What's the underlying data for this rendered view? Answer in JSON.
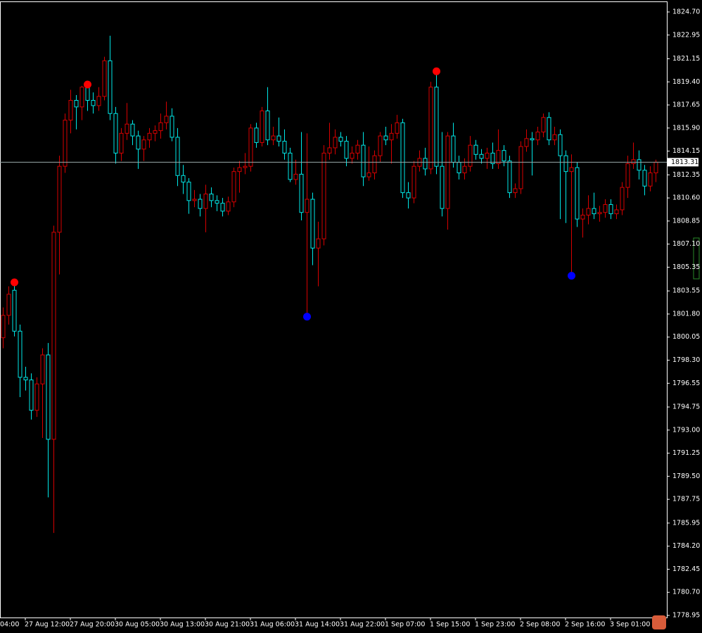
{
  "chart_data": {
    "type": "candlestick",
    "bull_color": "#d80000",
    "bear_color": "#00e8e8",
    "fractal_up_color": "#ff0000",
    "fractal_down_color": "#0000ff",
    "ylim": [
      1778.79,
      1825.5
    ],
    "yticks": [
      {
        "value": 1824.7,
        "label": "1824.70"
      },
      1822.95,
      1821.15,
      {
        "value": 1819.4,
        "label": "1819.40"
      },
      1817.65,
      {
        "value": 1815.9,
        "label": "1815.90"
      },
      1814.15,
      1812.35,
      {
        "value": 1810.6,
        "label": "1810.60"
      },
      1808.85,
      {
        "value": 1807.1,
        "label": "1807.10"
      },
      1805.35,
      1803.55,
      {
        "value": 1801.8,
        "label": "1801.80"
      },
      1800.05,
      {
        "value": 1798.3,
        "label": "1798.30"
      },
      1796.55,
      1794.75,
      {
        "value": 1793.0,
        "label": "1793.00"
      },
      1791.25,
      {
        "value": 1789.5,
        "label": "1789.50"
      },
      1787.75,
      1785.95,
      {
        "value": 1784.2,
        "label": "1784.20"
      },
      1782.45,
      {
        "value": 1780.7,
        "label": "1780.70"
      },
      1778.95
    ],
    "current_price": 1813.31,
    "first_label_cut": "04:00",
    "categories": [
      null,
      null,
      null,
      null,
      "27 Aug 12:00",
      null,
      null,
      null,
      null,
      null,
      null,
      null,
      "27 Aug 20:00",
      null,
      null,
      null,
      null,
      null,
      null,
      null,
      "30 Aug 05:00",
      null,
      null,
      null,
      null,
      null,
      null,
      null,
      "30 Aug 13:00",
      null,
      null,
      null,
      null,
      null,
      null,
      null,
      "30 Aug 21:00",
      null,
      null,
      null,
      null,
      null,
      null,
      null,
      "31 Aug 06:00",
      null,
      null,
      null,
      null,
      null,
      null,
      null,
      "31 Aug 14:00",
      null,
      null,
      null,
      null,
      null,
      null,
      null,
      "31 Aug 22:00",
      null,
      null,
      null,
      null,
      null,
      null,
      null,
      "1 Sep 07:00",
      null,
      null,
      null,
      null,
      null,
      null,
      null,
      "1 Sep 15:00",
      null,
      null,
      null,
      null,
      null,
      null,
      null,
      "1 Sep 23:00",
      null,
      null,
      null,
      null,
      null,
      null,
      null,
      "2 Sep 08:00",
      null,
      null,
      null,
      null,
      null,
      null,
      null,
      "2 Sep 16:00",
      null,
      null,
      null,
      null,
      null,
      null,
      null,
      "3 Sep 01:00",
      null,
      null,
      null,
      null,
      null,
      null,
      null,
      null
    ],
    "open": [
      1800.0,
      1801.7,
      1803.6,
      1800.5,
      1797.0,
      1796.8,
      1794.5,
      1796.5,
      1798.7,
      1792.3,
      1808.0,
      1813.0,
      1816.5,
      1818.0,
      1817.5,
      1819.0,
      1818.0,
      1817.6,
      1818.3,
      1821.0,
      1817.0,
      1814.0,
      1815.5,
      1816.2,
      1815.3,
      1814.3,
      1815.0,
      1815.5,
      1815.7,
      1816.3,
      1816.8,
      1815.2,
      1812.3,
      1811.8,
      1810.4,
      1810.5,
      1809.8,
      1810.9,
      1810.4,
      1810.2,
      1809.6,
      1810.3,
      1812.6,
      1812.9,
      1813.0,
      1815.9,
      1814.8,
      1817.2,
      1815.0,
      1815.3,
      1814.9,
      1814.0,
      1812.0,
      1812.4,
      1809.5,
      1810.5,
      1806.8,
      1807.5,
      1814.0,
      1814.4,
      1815.2,
      1814.9,
      1813.6,
      1814.0,
      1814.6,
      1812.2,
      1812.5,
      1813.8,
      1815.3,
      1815.0,
      1815.5,
      1816.3,
      1811.0,
      1810.6,
      1813.0,
      1813.6,
      1812.8,
      1819.0,
      1813.0,
      1809.8,
      1815.3,
      1813.3,
      1812.5,
      1813.0,
      1814.6,
      1813.9,
      1813.6,
      1814.0,
      1813.2,
      1814.2,
      1813.4,
      1811.0,
      1811.3,
      1814.5,
      1815.1,
      1815.0,
      1815.6,
      1816.7,
      1815.0,
      1815.4,
      1813.8,
      1812.6,
      1812.9,
      1809.0,
      1809.3,
      1809.8,
      1809.4,
      1809.5,
      1810.1,
      1809.4,
      1809.7,
      1811.4,
      1813.2,
      1813.5,
      1812.7,
      1811.5,
      1812.5
    ],
    "high": [
      1802.3,
      1803.9,
      1804.2,
      1801.0,
      1797.8,
      1797.3,
      1797.0,
      1799.2,
      1799.6,
      1808.5,
      1813.8,
      1817.0,
      1818.8,
      1818.4,
      1819.1,
      1819.2,
      1818.6,
      1819.0,
      1821.3,
      1822.9,
      1817.5,
      1815.9,
      1817.8,
      1816.5,
      1815.7,
      1815.3,
      1815.9,
      1816.1,
      1817.0,
      1817.9,
      1817.4,
      1815.9,
      1813.1,
      1812.1,
      1811.2,
      1810.9,
      1811.6,
      1811.4,
      1810.8,
      1810.6,
      1810.7,
      1812.9,
      1813.4,
      1814.0,
      1816.2,
      1816.3,
      1817.5,
      1819.0,
      1816.0,
      1816.7,
      1815.8,
      1814.4,
      1813.5,
      1815.6,
      1815.5,
      1811.0,
      1808.8,
      1814.6,
      1816.3,
      1815.8,
      1815.6,
      1815.3,
      1814.5,
      1815.0,
      1815.6,
      1814.5,
      1814.2,
      1815.6,
      1816.0,
      1816.2,
      1816.9,
      1816.6,
      1811.8,
      1813.4,
      1814.2,
      1814.4,
      1819.4,
      1820.2,
      1815.6,
      1815.6,
      1816.3,
      1813.8,
      1813.6,
      1815.3,
      1815.0,
      1814.3,
      1814.4,
      1814.8,
      1815.8,
      1814.6,
      1813.8,
      1811.7,
      1814.9,
      1815.8,
      1815.6,
      1816.0,
      1817.0,
      1817.1,
      1816.0,
      1815.8,
      1814.2,
      1813.9,
      1813.3,
      1809.8,
      1810.8,
      1811.0,
      1810.0,
      1810.5,
      1810.5,
      1810.1,
      1811.8,
      1813.8,
      1814.8,
      1814.2,
      1813.1,
      1813.0,
      1813.5
    ],
    "low": [
      1799.2,
      1801.0,
      1800.1,
      1795.5,
      1796.0,
      1793.8,
      1794.0,
      1792.4,
      1787.9,
      1785.2,
      1804.8,
      1812.5,
      1815.5,
      1815.8,
      1816.5,
      1817.2,
      1817.0,
      1817.2,
      1818.0,
      1816.5,
      1813.2,
      1813.4,
      1815.0,
      1814.6,
      1812.8,
      1813.4,
      1814.4,
      1814.9,
      1815.1,
      1815.8,
      1814.9,
      1811.5,
      1810.9,
      1809.4,
      1809.9,
      1809.2,
      1808.0,
      1809.9,
      1809.6,
      1809.2,
      1809.3,
      1809.9,
      1811.0,
      1812.4,
      1812.6,
      1814.4,
      1814.5,
      1814.6,
      1814.6,
      1814.5,
      1813.5,
      1811.8,
      1811.6,
      1808.9,
      1801.6,
      1805.5,
      1803.9,
      1807.0,
      1813.5,
      1813.9,
      1814.5,
      1813.0,
      1813.2,
      1813.5,
      1811.5,
      1811.9,
      1812.0,
      1813.3,
      1814.6,
      1813.2,
      1815.1,
      1810.6,
      1809.8,
      1810.2,
      1812.6,
      1812.3,
      1812.4,
      1812.4,
      1809.2,
      1808.2,
      1812.9,
      1812.0,
      1812.0,
      1812.6,
      1813.5,
      1813.2,
      1812.8,
      1812.8,
      1812.8,
      1813.0,
      1810.6,
      1810.6,
      1810.9,
      1814.1,
      1812.3,
      1814.6,
      1815.2,
      1814.6,
      1814.6,
      1809.0,
      1808.7,
      1804.7,
      1808.4,
      1807.6,
      1808.6,
      1809.0,
      1808.8,
      1809.1,
      1809.0,
      1809.0,
      1809.3,
      1810.6,
      1812.8,
      1812.0,
      1810.8,
      1811.1,
      1811.8
    ],
    "close": [
      1801.7,
      1803.3,
      1800.5,
      1797.0,
      1796.8,
      1794.5,
      1796.5,
      1798.7,
      1792.3,
      1808.0,
      1813.0,
      1816.5,
      1818.0,
      1817.5,
      1819.0,
      1818.0,
      1817.6,
      1818.3,
      1821.0,
      1817.0,
      1814.0,
      1815.5,
      1816.2,
      1815.3,
      1814.3,
      1815.0,
      1815.5,
      1815.7,
      1816.3,
      1816.8,
      1815.2,
      1812.3,
      1811.8,
      1810.4,
      1810.5,
      1809.8,
      1810.9,
      1810.4,
      1810.2,
      1809.6,
      1810.3,
      1812.6,
      1812.9,
      1813.0,
      1815.9,
      1814.8,
      1817.2,
      1815.0,
      1815.3,
      1814.9,
      1814.0,
      1812.0,
      1812.4,
      1809.5,
      1810.5,
      1806.8,
      1807.5,
      1814.0,
      1814.4,
      1815.2,
      1814.9,
      1813.6,
      1814.0,
      1814.6,
      1812.2,
      1812.5,
      1813.8,
      1815.3,
      1815.0,
      1815.5,
      1816.3,
      1811.0,
      1810.6,
      1813.0,
      1813.6,
      1812.8,
      1819.0,
      1813.0,
      1809.8,
      1815.3,
      1813.3,
      1812.5,
      1813.0,
      1814.6,
      1813.9,
      1813.6,
      1814.0,
      1813.2,
      1814.2,
      1813.4,
      1811.0,
      1811.3,
      1814.5,
      1815.1,
      1815.0,
      1815.6,
      1816.7,
      1815.0,
      1815.4,
      1813.8,
      1812.6,
      1812.9,
      1809.0,
      1809.3,
      1809.8,
      1809.4,
      1809.5,
      1810.1,
      1809.4,
      1809.7,
      1811.4,
      1813.2,
      1813.5,
      1812.7,
      1811.5,
      1812.5,
      1813.31
    ],
    "fractal_up": [
      null,
      null,
      1804.2,
      null,
      null,
      null,
      null,
      null,
      null,
      null,
      null,
      null,
      null,
      null,
      null,
      1819.2,
      null,
      null,
      null,
      null,
      null,
      null,
      null,
      null,
      null,
      null,
      null,
      null,
      null,
      null,
      null,
      null,
      null,
      null,
      null,
      null,
      null,
      null,
      null,
      null,
      null,
      null,
      null,
      null,
      null,
      null,
      null,
      null,
      null,
      null,
      null,
      null,
      null,
      null,
      null,
      null,
      null,
      null,
      null,
      null,
      null,
      null,
      null,
      null,
      null,
      null,
      null,
      null,
      null,
      null,
      null,
      null,
      null,
      null,
      null,
      null,
      null,
      1820.2,
      null,
      null,
      null,
      null,
      null,
      null,
      null,
      null,
      null,
      null,
      null,
      null,
      null,
      null,
      null,
      null,
      null,
      null,
      null,
      null,
      null,
      null,
      null,
      null,
      null,
      null,
      null,
      null,
      null,
      null,
      null,
      null,
      null,
      null,
      null,
      null,
      null,
      null,
      null
    ],
    "fractal_down": [
      null,
      null,
      null,
      null,
      null,
      null,
      null,
      null,
      null,
      null,
      null,
      null,
      null,
      null,
      null,
      null,
      null,
      null,
      null,
      null,
      null,
      null,
      null,
      null,
      null,
      null,
      null,
      null,
      null,
      null,
      null,
      null,
      null,
      null,
      null,
      null,
      null,
      null,
      null,
      null,
      null,
      null,
      null,
      null,
      null,
      null,
      null,
      null,
      null,
      null,
      null,
      null,
      null,
      null,
      1801.6,
      null,
      null,
      null,
      null,
      null,
      null,
      null,
      null,
      null,
      null,
      null,
      null,
      null,
      null,
      null,
      null,
      null,
      null,
      null,
      null,
      null,
      null,
      null,
      null,
      null,
      null,
      null,
      null,
      null,
      null,
      null,
      null,
      null,
      null,
      null,
      null,
      null,
      null,
      null,
      null,
      null,
      null,
      null,
      null,
      null,
      null,
      1804.7,
      null,
      null,
      null,
      null,
      null,
      null,
      null,
      null,
      null,
      null,
      null,
      null,
      null,
      null,
      null
    ]
  }
}
